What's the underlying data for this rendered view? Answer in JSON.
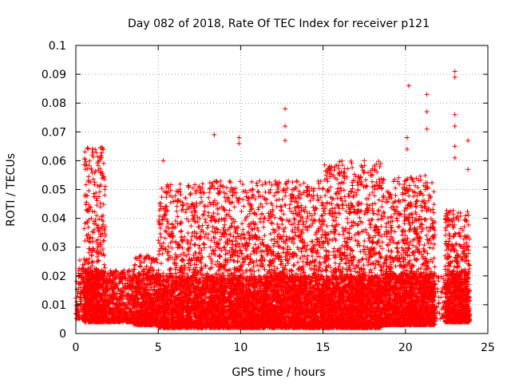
{
  "chart_data": {
    "type": "scatter",
    "title": "Day 082 of 2018, Rate Of TEC Index for receiver p121",
    "xlabel": "GPS time / hours",
    "ylabel": "ROTI / TECUs",
    "xlim": [
      0,
      25
    ],
    "ylim": [
      0,
      0.1
    ],
    "xticks": [
      0,
      5,
      10,
      15,
      20,
      25
    ],
    "xtick_labels": [
      "0",
      "5",
      "10",
      "15",
      "20",
      "25"
    ],
    "yticks": [
      0,
      0.01,
      0.02,
      0.03,
      0.04,
      0.05,
      0.06,
      0.07,
      0.08,
      0.09,
      0.1
    ],
    "ytick_labels": [
      "0",
      "0.01",
      "0.02",
      "0.03",
      "0.04",
      "0.05",
      "0.06",
      "0.07",
      "0.08",
      "0.09",
      "0.1"
    ],
    "grid": true,
    "marker": "+",
    "color": "#ff0000",
    "density_profile": [
      {
        "x_start": 0.0,
        "x_end": 0.5,
        "y_min": 0.005,
        "y_max": 0.026,
        "level": 0.3
      },
      {
        "x_start": 0.5,
        "x_end": 1.8,
        "y_min": 0.004,
        "y_max": 0.065,
        "level": 1.0
      },
      {
        "x_start": 1.8,
        "x_end": 3.5,
        "y_min": 0.004,
        "y_max": 0.022,
        "level": 0.45
      },
      {
        "x_start": 3.5,
        "x_end": 5.0,
        "y_min": 0.003,
        "y_max": 0.027,
        "level": 0.7
      },
      {
        "x_start": 5.0,
        "x_end": 8.0,
        "y_min": 0.002,
        "y_max": 0.052,
        "level": 0.85
      },
      {
        "x_start": 8.0,
        "x_end": 10.5,
        "y_min": 0.002,
        "y_max": 0.053,
        "level": 0.9
      },
      {
        "x_start": 10.5,
        "x_end": 15.0,
        "y_min": 0.002,
        "y_max": 0.053,
        "level": 0.95
      },
      {
        "x_start": 15.0,
        "x_end": 18.5,
        "y_min": 0.002,
        "y_max": 0.06,
        "level": 1.0
      },
      {
        "x_start": 18.5,
        "x_end": 21.8,
        "y_min": 0.003,
        "y_max": 0.055,
        "level": 0.95
      },
      {
        "x_start": 21.8,
        "x_end": 22.4,
        "y_min": 0.005,
        "y_max": 0.02,
        "level": 0.1
      },
      {
        "x_start": 22.4,
        "x_end": 23.9,
        "y_min": 0.004,
        "y_max": 0.043,
        "level": 0.9
      }
    ],
    "outliers": [
      {
        "x": 8.4,
        "y": 0.069
      },
      {
        "x": 9.9,
        "y": 0.068
      },
      {
        "x": 9.9,
        "y": 0.066
      },
      {
        "x": 12.7,
        "y": 0.078
      },
      {
        "x": 12.7,
        "y": 0.072
      },
      {
        "x": 12.7,
        "y": 0.067
      },
      {
        "x": 20.2,
        "y": 0.086
      },
      {
        "x": 20.1,
        "y": 0.068
      },
      {
        "x": 20.1,
        "y": 0.064
      },
      {
        "x": 21.3,
        "y": 0.083
      },
      {
        "x": 21.3,
        "y": 0.077
      },
      {
        "x": 21.3,
        "y": 0.071
      },
      {
        "x": 23.0,
        "y": 0.091
      },
      {
        "x": 23.0,
        "y": 0.089
      },
      {
        "x": 23.0,
        "y": 0.076
      },
      {
        "x": 23.0,
        "y": 0.072
      },
      {
        "x": 23.0,
        "y": 0.065
      },
      {
        "x": 23.0,
        "y": 0.061
      },
      {
        "x": 23.8,
        "y": 0.067
      },
      {
        "x": 23.8,
        "y": 0.057
      },
      {
        "x": 5.3,
        "y": 0.06
      },
      {
        "x": 1.0,
        "y": 0.064
      },
      {
        "x": 1.0,
        "y": 0.062
      },
      {
        "x": 17.5,
        "y": 0.06
      },
      {
        "x": 18.5,
        "y": 0.059
      }
    ]
  }
}
